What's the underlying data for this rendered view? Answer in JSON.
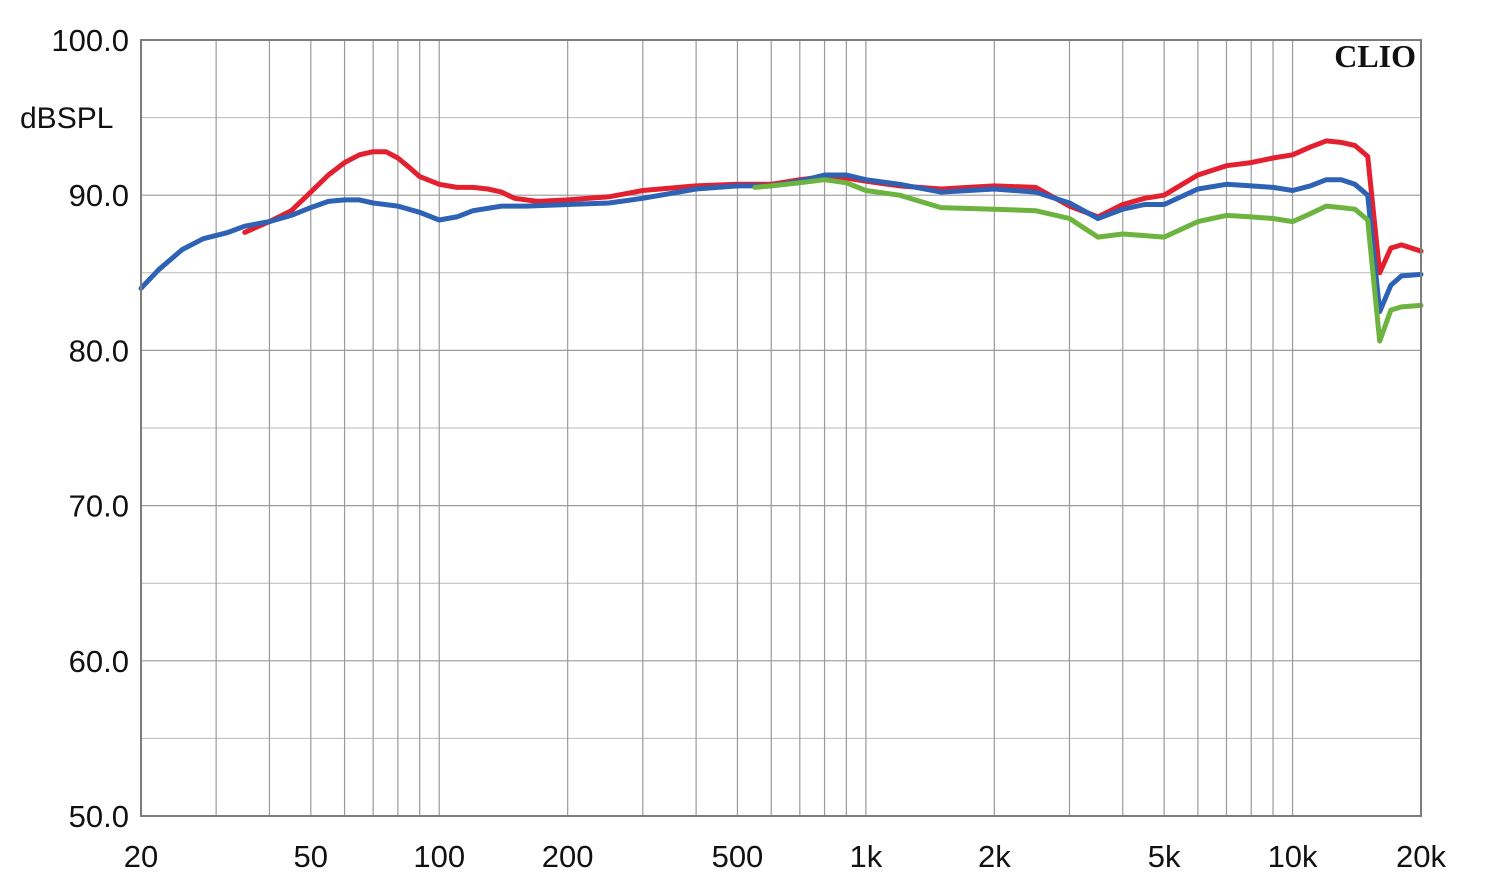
{
  "chart_data": {
    "type": "line",
    "brand": "CLIO",
    "ylabel": "dBSPL",
    "xscale": "log",
    "xlim": [
      20,
      20000
    ],
    "ylim": [
      50,
      100
    ],
    "grid": true,
    "y_ticks": [
      {
        "value": 100,
        "label": "100.0"
      },
      {
        "value": 90,
        "label": "90.0"
      },
      {
        "value": 80,
        "label": "80.0"
      },
      {
        "value": 70,
        "label": "70.0"
      },
      {
        "value": 60,
        "label": "60.0"
      },
      {
        "value": 50,
        "label": "50.0"
      }
    ],
    "x_ticks": [
      {
        "value": 20,
        "label": "20"
      },
      {
        "value": 50,
        "label": "50"
      },
      {
        "value": 100,
        "label": "100"
      },
      {
        "value": 200,
        "label": "200"
      },
      {
        "value": 500,
        "label": "500"
      },
      {
        "value": 1000,
        "label": "1k"
      },
      {
        "value": 2000,
        "label": "2k"
      },
      {
        "value": 5000,
        "label": "5k"
      },
      {
        "value": 10000,
        "label": "10k"
      },
      {
        "value": 20000,
        "label": "20k"
      }
    ],
    "series": [
      {
        "color": "#e3202f",
        "x": [
          35,
          40,
          45,
          50,
          55,
          60,
          65,
          70,
          75,
          80,
          85,
          90,
          100,
          110,
          120,
          130,
          140,
          150,
          170,
          200,
          250,
          300,
          400,
          500,
          600,
          700,
          800,
          900,
          1000,
          1200,
          1500,
          2000,
          2500,
          3000,
          3500,
          4000,
          4500,
          5000,
          6000,
          7000,
          8000,
          9000,
          10000,
          11000,
          12000,
          13000,
          14000,
          15000,
          16000,
          17000,
          18000,
          20000
        ],
        "y": [
          87.6,
          88.3,
          89.0,
          90.2,
          91.3,
          92.1,
          92.6,
          92.8,
          92.8,
          92.4,
          91.8,
          91.2,
          90.7,
          90.5,
          90.5,
          90.4,
          90.2,
          89.8,
          89.6,
          89.7,
          89.9,
          90.3,
          90.6,
          90.7,
          90.7,
          91.0,
          91.2,
          91.1,
          90.9,
          90.6,
          90.4,
          90.6,
          90.5,
          89.3,
          88.6,
          89.4,
          89.8,
          90.0,
          91.3,
          91.9,
          92.1,
          92.4,
          92.6,
          93.1,
          93.5,
          93.4,
          93.2,
          92.5,
          85.0,
          86.6,
          86.8,
          86.4
        ]
      },
      {
        "color": "#2d62b5",
        "x": [
          20,
          22,
          25,
          28,
          32,
          35,
          40,
          45,
          50,
          55,
          60,
          65,
          70,
          80,
          90,
          100,
          110,
          120,
          140,
          160,
          200,
          250,
          300,
          400,
          500,
          600,
          700,
          800,
          900,
          1000,
          1200,
          1500,
          2000,
          2500,
          3000,
          3500,
          4000,
          4500,
          5000,
          6000,
          7000,
          8000,
          9000,
          10000,
          11000,
          12000,
          13000,
          14000,
          15000,
          16000,
          17000,
          18000,
          20000
        ],
        "y": [
          84.0,
          85.2,
          86.5,
          87.2,
          87.6,
          88.0,
          88.3,
          88.7,
          89.2,
          89.6,
          89.7,
          89.7,
          89.5,
          89.3,
          88.9,
          88.4,
          88.6,
          89.0,
          89.3,
          89.3,
          89.4,
          89.5,
          89.8,
          90.4,
          90.6,
          90.6,
          90.9,
          91.3,
          91.3,
          91.0,
          90.7,
          90.2,
          90.4,
          90.2,
          89.5,
          88.5,
          89.1,
          89.4,
          89.4,
          90.4,
          90.7,
          90.6,
          90.5,
          90.3,
          90.6,
          91.0,
          91.0,
          90.7,
          90.0,
          82.5,
          84.2,
          84.8,
          84.9
        ]
      },
      {
        "color": "#6cb33f",
        "x": [
          550,
          600,
          700,
          800,
          900,
          1000,
          1200,
          1500,
          2000,
          2500,
          3000,
          3500,
          4000,
          4500,
          5000,
          6000,
          7000,
          8000,
          9000,
          10000,
          11000,
          12000,
          13000,
          14000,
          15000,
          16000,
          17000,
          18000,
          20000
        ],
        "y": [
          90.5,
          90.6,
          90.8,
          91.0,
          90.8,
          90.3,
          90.0,
          89.2,
          89.1,
          89.0,
          88.5,
          87.3,
          87.5,
          87.4,
          87.3,
          88.3,
          88.7,
          88.6,
          88.5,
          88.3,
          88.8,
          89.3,
          89.2,
          89.1,
          88.4,
          80.6,
          82.6,
          82.8,
          82.9
        ]
      }
    ]
  }
}
